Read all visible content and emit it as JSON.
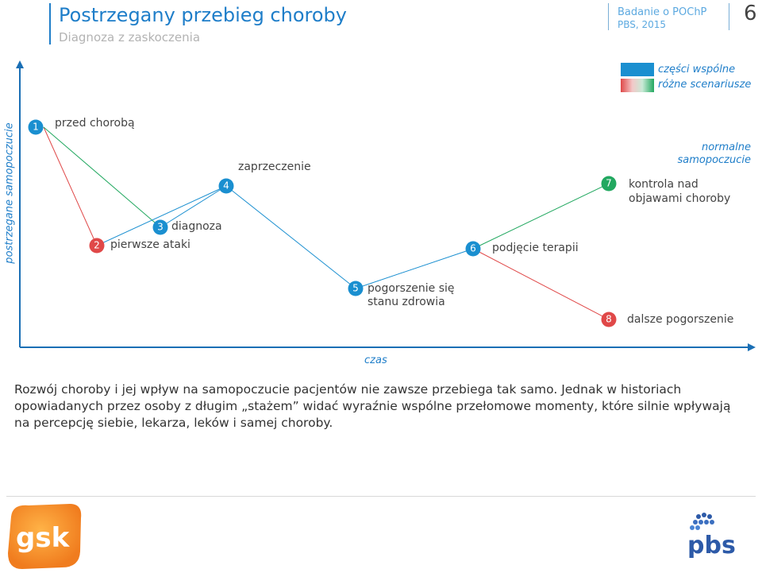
{
  "header": {
    "title": "Postrzegany przebieg choroby",
    "subtitle": "Diagnoza z zaskoczenia",
    "source_line1": "Badanie o POChP",
    "source_line2": "PBS, 2015",
    "page_number": "6"
  },
  "legend": {
    "common": "części wspólne",
    "varied": "różne scenariusze"
  },
  "axes": {
    "y_label": "postrzegane samopoczucie",
    "x_label": "czas"
  },
  "stages": [
    {
      "num": "1",
      "label": "przed chorobą",
      "kind": "common"
    },
    {
      "num": "2",
      "label": "pierwsze ataki",
      "kind": "red"
    },
    {
      "num": "3",
      "label": "diagnoza",
      "kind": "common"
    },
    {
      "num": "4",
      "label": "zaprzeczenie",
      "kind": "common"
    },
    {
      "num": "5",
      "label": "pogorszenie się stanu zdrowia",
      "label_line1": "pogorszenie się",
      "label_line2": "stanu zdrowia",
      "kind": "common"
    },
    {
      "num": "6",
      "label": "podjęcie terapii",
      "kind": "common"
    },
    {
      "num": "7",
      "label": "kontrola nad objawami choroby",
      "label_line1": "kontrola nad",
      "label_line2": "objawami choroby",
      "kind": "green"
    },
    {
      "num": "8",
      "label": "dalsze pogorszenie",
      "kind": "red"
    }
  ],
  "annotations": {
    "normal_line1": "normalne",
    "normal_line2": "samopoczucie"
  },
  "description": "Rozwój choroby i jej wpływ na samopoczucie pacjentów nie zawsze przebiega tak samo. Jednak w historiach opowiadanych przez osoby z długim „stażem” widać wyraźnie wspólne przełomowe momenty, które silnie wpływają na percepcję siebie, lekarza, leków i samej choroby.",
  "logos": {
    "left": "gsk",
    "right": "pbs"
  },
  "colors": {
    "accent": "#1f7ec9",
    "common": "#1a8fd0",
    "red": "#e04848",
    "green": "#22a860",
    "axis": "#1a6fb5",
    "gsk_orange": "#f07c1e"
  }
}
